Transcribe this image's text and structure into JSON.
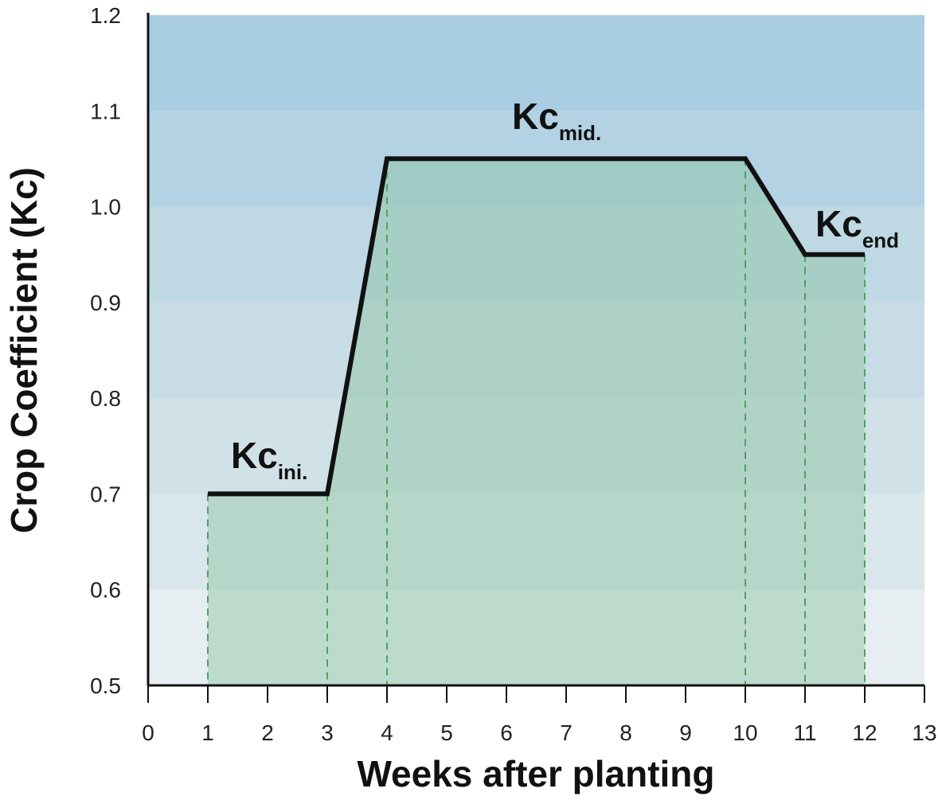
{
  "chart_data": {
    "type": "area-line",
    "x_label": "Weeks after planting",
    "y_label": "Crop Coefficient (Kc)",
    "x": [
      1,
      3,
      4,
      10,
      11,
      12
    ],
    "values": [
      0.7,
      0.7,
      1.05,
      1.05,
      0.95,
      0.95
    ],
    "color": "#111111",
    "fill_color": "#8cc4a0",
    "drop_line_color": "#4aa55a",
    "band_colors": [
      "#e6eef1",
      "#d9e6ec",
      "#d0e1e8",
      "#c8dce6",
      "#bed8e4",
      "#b3d2e3",
      "#a9cde2"
    ],
    "xlim": [
      0,
      13
    ],
    "xticks": [
      0,
      1,
      2,
      3,
      4,
      5,
      6,
      7,
      8,
      9,
      10,
      11,
      12,
      13
    ],
    "ylim": [
      0.5,
      1.2
    ],
    "yticks": [
      0.5,
      0.6,
      0.7,
      0.8,
      0.9,
      {
        "value": 1,
        "label": "1.0"
      },
      1.1,
      1.2
    ],
    "annotations": [
      {
        "text": "Kc",
        "subscript": "ini."
      },
      {
        "text": "Kc",
        "subscript": "mid."
      },
      {
        "text": "Kc",
        "subscript": "end"
      }
    ]
  }
}
